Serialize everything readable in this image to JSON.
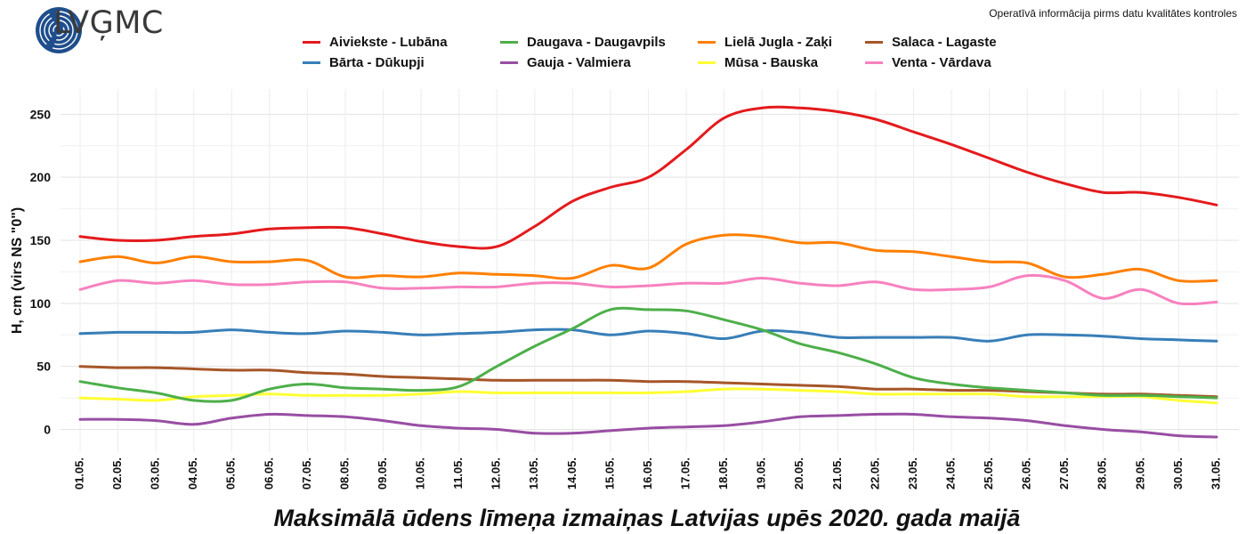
{
  "header": {
    "logo_text": "LVĢMC",
    "note": "Operatīvā informācija pirms datu kvalitātes kontroles"
  },
  "chart_data": {
    "type": "line",
    "title": "Maksimālā ūdens līmeņa izmaiņas Latvijas upēs 2020. gada maijā",
    "xlabel": "",
    "ylabel": "H, cm (virs NS \"0\")",
    "ylim": [
      -18,
      270
    ],
    "yticks": [
      0,
      50,
      100,
      150,
      200,
      250
    ],
    "grid": true,
    "legend_position": "top",
    "categories": [
      "01.05.",
      "02.05.",
      "03.05.",
      "04.05.",
      "05.05.",
      "06.05.",
      "07.05.",
      "08.05.",
      "09.05.",
      "10.05.",
      "11.05.",
      "12.05.",
      "13.05.",
      "14.05.",
      "15.05.",
      "16.05.",
      "17.05.",
      "18.05.",
      "19.05.",
      "20.05.",
      "21.05.",
      "22.05.",
      "23.05.",
      "24.05.",
      "25.05.",
      "26.05.",
      "27.05.",
      "28.05.",
      "29.05.",
      "30.05.",
      "31.05."
    ],
    "series": [
      {
        "name": "Aiviekste - Lubāna",
        "color": "#e41a1c",
        "values": [
          153,
          150,
          150,
          153,
          155,
          159,
          160,
          160,
          155,
          149,
          145,
          145,
          161,
          181,
          192,
          200,
          222,
          247,
          255,
          255,
          252,
          246,
          236,
          226,
          215,
          204,
          195,
          188,
          188,
          184,
          178
        ]
      },
      {
        "name": "Bārta - Dūkupji",
        "color": "#377eb8",
        "values": [
          76,
          77,
          77,
          77,
          79,
          77,
          76,
          78,
          77,
          75,
          76,
          77,
          79,
          79,
          75,
          78,
          76,
          72,
          78,
          77,
          73,
          73,
          73,
          73,
          70,
          75,
          75,
          74,
          72,
          71,
          70
        ]
      },
      {
        "name": "Daugava - Daugavpils",
        "color": "#4daf4a",
        "values": [
          38,
          33,
          29,
          23,
          23,
          32,
          36,
          33,
          32,
          31,
          34,
          50,
          66,
          80,
          95,
          95,
          94,
          87,
          79,
          68,
          61,
          52,
          41,
          36,
          33,
          31,
          29,
          27,
          27,
          26,
          25
        ]
      },
      {
        "name": "Gauja - Valmiera",
        "color": "#984ea3",
        "values": [
          8,
          8,
          7,
          4,
          9,
          12,
          11,
          10,
          7,
          3,
          1,
          0,
          -3,
          -3,
          -1,
          1,
          2,
          3,
          6,
          10,
          11,
          12,
          12,
          10,
          9,
          7,
          3,
          0,
          -2,
          -5,
          -6
        ]
      },
      {
        "name": "Lielā Jugla - Zaķi",
        "color": "#ff7f00",
        "values": [
          133,
          137,
          132,
          137,
          133,
          133,
          134,
          121,
          122,
          121,
          124,
          123,
          122,
          120,
          130,
          128,
          147,
          154,
          153,
          148,
          148,
          142,
          141,
          137,
          133,
          132,
          121,
          123,
          127,
          118,
          118
        ]
      },
      {
        "name": "Mūsa - Bauska",
        "color": "#ffff33",
        "values": [
          25,
          24,
          23,
          26,
          27,
          28,
          27,
          27,
          27,
          28,
          30,
          29,
          29,
          29,
          29,
          29,
          30,
          32,
          32,
          31,
          30,
          28,
          28,
          28,
          28,
          26,
          26,
          26,
          26,
          23,
          21
        ]
      },
      {
        "name": "Salaca - Lagaste",
        "color": "#a65628",
        "values": [
          50,
          49,
          49,
          48,
          47,
          47,
          45,
          44,
          42,
          41,
          40,
          39,
          39,
          39,
          39,
          38,
          38,
          37,
          36,
          35,
          34,
          32,
          32,
          31,
          31,
          30,
          29,
          28,
          28,
          27,
          26
        ]
      },
      {
        "name": "Venta - Vārdava",
        "color": "#f781bf",
        "values": [
          111,
          118,
          116,
          118,
          115,
          115,
          117,
          117,
          112,
          112,
          113,
          113,
          116,
          116,
          113,
          114,
          116,
          116,
          120,
          116,
          114,
          117,
          111,
          111,
          113,
          122,
          118,
          104,
          111,
          100,
          101
        ]
      }
    ]
  }
}
